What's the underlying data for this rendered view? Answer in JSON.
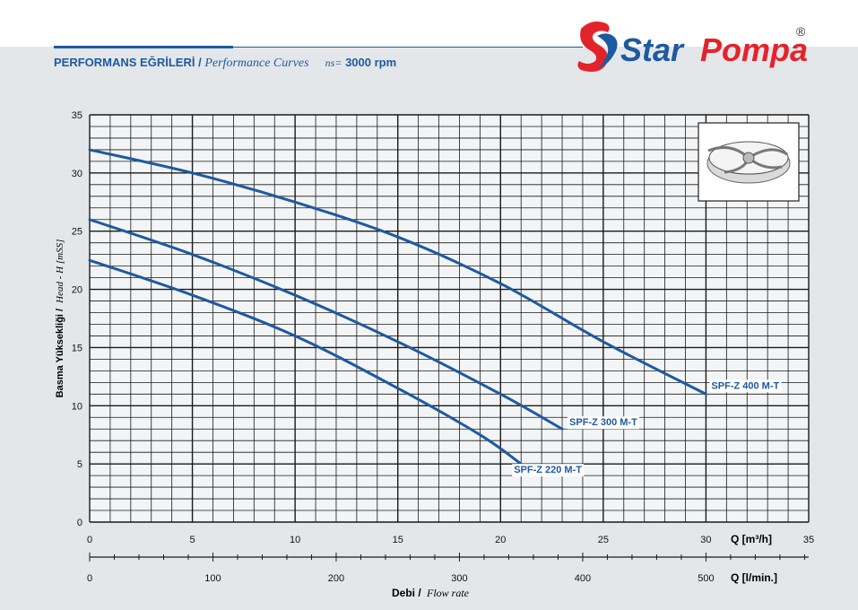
{
  "header": {
    "title_tr": "PERFORMANS EĞRİLERİ",
    "separator": "/",
    "title_en": "Performance Curves",
    "ns_label": "ns=",
    "rpm": "3000 rpm"
  },
  "brand": {
    "name_part1": "Star",
    "name_part2": "Pompa",
    "registered": "®",
    "color_blue": "#1d5aa0",
    "color_red": "#e3232a"
  },
  "chart_data": {
    "type": "line",
    "ylabel_tr": "Basma Yüksekliği /",
    "ylabel_en": "Head - H [mSS]",
    "xlabel_tr": "Debi /",
    "xlabel_en": "Flow rate",
    "x_unit_primary": "Q [m³/h]",
    "x_unit_secondary": "Q [l/min.]",
    "xlim": [
      0,
      35
    ],
    "ylim": [
      0,
      35
    ],
    "x_ticks": [
      0,
      5,
      10,
      15,
      20,
      25,
      30,
      35
    ],
    "y_ticks": [
      0,
      5,
      10,
      15,
      20,
      25,
      30,
      35
    ],
    "x2_ticks": [
      0,
      100,
      200,
      300,
      400,
      500
    ],
    "grid": true,
    "line_color": "#1d5aa0",
    "series": [
      {
        "name": "SPF-Z 400 M-T",
        "x": [
          0,
          5,
          10,
          15,
          20,
          25,
          30
        ],
        "y": [
          32,
          30,
          27.5,
          24.5,
          20.5,
          15.5,
          11
        ]
      },
      {
        "name": "SPF-Z 300 M-T",
        "x": [
          0,
          5,
          10,
          15,
          20,
          23
        ],
        "y": [
          26,
          23,
          19.5,
          15.5,
          11,
          8
        ]
      },
      {
        "name": "SPF-Z 220 M-T",
        "x": [
          0,
          5,
          10,
          15,
          19,
          21
        ],
        "y": [
          22.5,
          19.5,
          16,
          11.5,
          7.5,
          5
        ]
      }
    ]
  }
}
